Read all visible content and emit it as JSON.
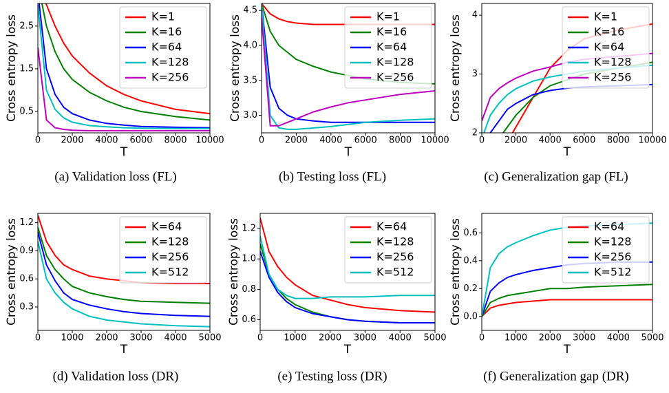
{
  "chart_data": [
    {
      "type": "line",
      "caption": "(a) Validation loss (FL)",
      "xlabel": "T",
      "ylabel": "Cross entropy loss",
      "legend": "upper right",
      "x": [
        0,
        500,
        1000,
        1500,
        2000,
        3000,
        4000,
        5000,
        6000,
        8000,
        10000
      ],
      "xlim": [
        0,
        10000
      ],
      "ylim": [
        0,
        3.03
      ],
      "xticks": [
        0,
        2000,
        4000,
        6000,
        8000,
        10000
      ],
      "yticks": [
        0.5,
        1.5,
        2.5
      ],
      "series": [
        {
          "name": "K=1",
          "color": "#ff0000",
          "values": [
            3.5,
            3.0,
            2.5,
            2.1,
            1.8,
            1.4,
            1.1,
            0.9,
            0.75,
            0.55,
            0.45
          ]
        },
        {
          "name": "K=16",
          "color": "#008000",
          "values": [
            3.5,
            2.5,
            1.9,
            1.5,
            1.25,
            0.95,
            0.75,
            0.6,
            0.5,
            0.38,
            0.3
          ]
        },
        {
          "name": "K=64",
          "color": "#0000ff",
          "values": [
            3.3,
            1.5,
            0.9,
            0.6,
            0.45,
            0.3,
            0.22,
            0.18,
            0.15,
            0.13,
            0.12
          ]
        },
        {
          "name": "K=128",
          "color": "#00bfbf",
          "values": [
            3.0,
            1.0,
            0.55,
            0.35,
            0.25,
            0.17,
            0.14,
            0.12,
            0.11,
            0.1,
            0.1
          ]
        },
        {
          "name": "K=256",
          "color": "#bf00bf",
          "values": [
            2.0,
            0.3,
            0.12,
            0.08,
            0.06,
            0.05,
            0.05,
            0.05,
            0.05,
            0.05,
            0.05
          ]
        }
      ]
    },
    {
      "type": "line",
      "caption": "(b) Testing loss (FL)",
      "xlabel": "T",
      "ylabel": "Cross entropy loss",
      "legend": "upper right",
      "x": [
        0,
        500,
        1000,
        1500,
        2000,
        3000,
        4000,
        5000,
        6000,
        8000,
        10000
      ],
      "xlim": [
        0,
        10000
      ],
      "ylim": [
        2.75,
        4.6
      ],
      "xticks": [
        0,
        2000,
        4000,
        6000,
        8000,
        10000
      ],
      "yticks": [
        {
          "value": 3,
          "label": "3.0"
        },
        3.5,
        {
          "value": 4,
          "label": "4.0"
        },
        4.5
      ],
      "series": [
        {
          "name": "K=1",
          "color": "#ff0000",
          "values": [
            4.6,
            4.45,
            4.38,
            4.34,
            4.32,
            4.3,
            4.3,
            4.3,
            4.3,
            4.3,
            4.3
          ]
        },
        {
          "name": "K=16",
          "color": "#008000",
          "values": [
            4.6,
            4.2,
            4.0,
            3.9,
            3.8,
            3.7,
            3.62,
            3.57,
            3.52,
            3.47,
            3.45
          ]
        },
        {
          "name": "K=64",
          "color": "#0000ff",
          "values": [
            4.6,
            3.4,
            3.1,
            3.0,
            2.95,
            2.92,
            2.9,
            2.9,
            2.9,
            2.9,
            2.9
          ]
        },
        {
          "name": "K=128",
          "color": "#00bfbf",
          "values": [
            4.6,
            3.0,
            2.82,
            2.8,
            2.8,
            2.82,
            2.84,
            2.87,
            2.9,
            2.93,
            2.95
          ]
        },
        {
          "name": "K=256",
          "color": "#bf00bf",
          "values": [
            4.4,
            2.85,
            2.85,
            2.9,
            2.95,
            3.05,
            3.12,
            3.18,
            3.22,
            3.3,
            3.35
          ]
        }
      ]
    },
    {
      "type": "line",
      "caption": "(c) Generalization gap (FL)",
      "xlabel": "T",
      "ylabel": "Cross entropy loss",
      "legend": "upper right",
      "x": [
        0,
        500,
        1000,
        1500,
        2000,
        3000,
        4000,
        5000,
        6000,
        8000,
        10000
      ],
      "xlim": [
        0,
        10000
      ],
      "ylim": [
        2,
        4.2
      ],
      "xticks": [
        0,
        2000,
        4000,
        6000,
        8000,
        10000
      ],
      "yticks": [
        2,
        3,
        4
      ],
      "series": [
        {
          "name": "K=1",
          "color": "#ff0000",
          "values": [
            1.5,
            1.6,
            1.7,
            1.85,
            2.1,
            2.6,
            3.1,
            3.4,
            3.6,
            3.75,
            3.85
          ]
        },
        {
          "name": "K=16",
          "color": "#008000",
          "values": [
            1.5,
            1.7,
            1.9,
            2.1,
            2.3,
            2.6,
            2.8,
            2.9,
            3.0,
            3.1,
            3.2
          ]
        },
        {
          "name": "K=64",
          "color": "#0000ff",
          "values": [
            1.8,
            2.0,
            2.2,
            2.4,
            2.5,
            2.65,
            2.72,
            2.76,
            2.78,
            2.8,
            2.82
          ]
        },
        {
          "name": "K=128",
          "color": "#00bfbf",
          "values": [
            1.9,
            2.3,
            2.5,
            2.65,
            2.75,
            2.88,
            2.95,
            3.0,
            3.05,
            3.1,
            3.15
          ]
        },
        {
          "name": "K=256",
          "color": "#bf00bf",
          "values": [
            2.2,
            2.6,
            2.75,
            2.85,
            2.93,
            3.05,
            3.12,
            3.2,
            3.25,
            3.3,
            3.35
          ]
        }
      ]
    },
    {
      "type": "line",
      "caption": "(d) Validation loss (DR)",
      "xlabel": "T",
      "ylabel": "Cross entropy loss",
      "legend": "upper right",
      "x": [
        0,
        250,
        500,
        750,
        1000,
        1500,
        2000,
        2500,
        3000,
        4000,
        5000
      ],
      "xlim": [
        0,
        5000
      ],
      "ylim": [
        0.05,
        1.3
      ],
      "xticks": [
        0,
        1000,
        2000,
        3000,
        4000,
        5000
      ],
      "yticks": [
        0.3,
        0.6,
        0.9,
        1.2
      ],
      "series": [
        {
          "name": "K=64",
          "color": "#ff0000",
          "values": [
            1.28,
            1.0,
            0.85,
            0.75,
            0.7,
            0.63,
            0.6,
            0.58,
            0.56,
            0.55,
            0.55
          ]
        },
        {
          "name": "K=128",
          "color": "#008000",
          "values": [
            1.15,
            0.85,
            0.7,
            0.6,
            0.52,
            0.45,
            0.41,
            0.38,
            0.36,
            0.35,
            0.34
          ]
        },
        {
          "name": "K=256",
          "color": "#0000ff",
          "values": [
            1.1,
            0.75,
            0.58,
            0.45,
            0.38,
            0.32,
            0.28,
            0.25,
            0.23,
            0.21,
            0.2
          ]
        },
        {
          "name": "K=512",
          "color": "#00bfbf",
          "values": [
            1.0,
            0.6,
            0.45,
            0.35,
            0.28,
            0.2,
            0.16,
            0.14,
            0.12,
            0.1,
            0.09
          ]
        }
      ]
    },
    {
      "type": "line",
      "caption": "(e) Testing loss (DR)",
      "xlabel": "T",
      "ylabel": "Cross entropy loss",
      "legend": "upper right",
      "x": [
        0,
        250,
        500,
        750,
        1000,
        1500,
        2000,
        2500,
        3000,
        4000,
        5000
      ],
      "xlim": [
        0,
        5000
      ],
      "ylim": [
        0.53,
        1.3
      ],
      "xticks": [
        0,
        1000,
        2000,
        3000,
        4000,
        5000
      ],
      "yticks": [
        0.6,
        0.8,
        {
          "value": 1,
          "label": "1.0"
        },
        1.2
      ],
      "series": [
        {
          "name": "K=64",
          "color": "#ff0000",
          "values": [
            1.27,
            1.05,
            0.95,
            0.88,
            0.83,
            0.76,
            0.73,
            0.7,
            0.68,
            0.66,
            0.65
          ]
        },
        {
          "name": "K=128",
          "color": "#008000",
          "values": [
            1.1,
            0.9,
            0.8,
            0.74,
            0.7,
            0.65,
            0.62,
            0.6,
            0.59,
            0.58,
            0.58
          ]
        },
        {
          "name": "K=256",
          "color": "#0000ff",
          "values": [
            1.05,
            0.88,
            0.78,
            0.72,
            0.68,
            0.64,
            0.62,
            0.6,
            0.59,
            0.58,
            0.58
          ]
        },
        {
          "name": "K=512",
          "color": "#00bfbf",
          "values": [
            1.15,
            0.9,
            0.8,
            0.76,
            0.74,
            0.74,
            0.75,
            0.75,
            0.75,
            0.76,
            0.76
          ]
        }
      ]
    },
    {
      "type": "line",
      "caption": "(f) Generalization gap (DR)",
      "xlabel": "T",
      "ylabel": "Cross entropy loss",
      "legend": "upper right",
      "x": [
        0,
        250,
        500,
        750,
        1000,
        1500,
        2000,
        2500,
        3000,
        4000,
        5000
      ],
      "xlim": [
        0,
        5000
      ],
      "ylim": [
        -0.1,
        0.74
      ],
      "xticks": [
        0,
        1000,
        2000,
        3000,
        4000,
        5000
      ],
      "yticks": [
        {
          "value": 0,
          "label": "0.0"
        },
        0.2,
        0.4,
        0.6
      ],
      "series": [
        {
          "name": "K=64",
          "color": "#ff0000",
          "values": [
            0.0,
            0.06,
            0.08,
            0.09,
            0.1,
            0.11,
            0.12,
            0.12,
            0.12,
            0.12,
            0.12
          ]
        },
        {
          "name": "K=128",
          "color": "#008000",
          "values": [
            0.0,
            0.1,
            0.13,
            0.15,
            0.16,
            0.18,
            0.2,
            0.2,
            0.21,
            0.22,
            0.23
          ]
        },
        {
          "name": "K=256",
          "color": "#0000ff",
          "values": [
            0.0,
            0.18,
            0.24,
            0.28,
            0.3,
            0.33,
            0.35,
            0.37,
            0.38,
            0.39,
            0.39
          ]
        },
        {
          "name": "K=512",
          "color": "#00bfbf",
          "values": [
            0.0,
            0.35,
            0.45,
            0.5,
            0.53,
            0.58,
            0.62,
            0.64,
            0.65,
            0.66,
            0.67
          ]
        }
      ]
    }
  ]
}
